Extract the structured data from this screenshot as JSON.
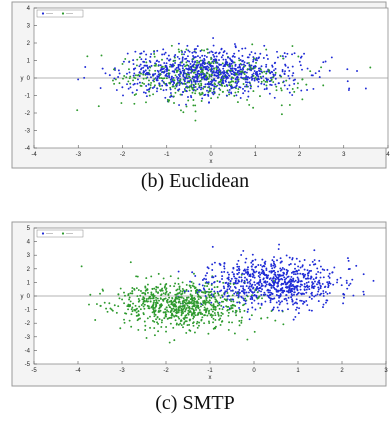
{
  "chart_data": [
    {
      "type": "scatter",
      "caption": "(b) Euclidean",
      "xlabel": "x",
      "ylabel": "y",
      "xlim": [
        -4,
        4
      ],
      "ylim": [
        -4,
        4
      ],
      "xticks": [
        -4,
        -3,
        -2,
        -1,
        0,
        1,
        2,
        3,
        4
      ],
      "yticks": [
        4,
        3,
        2,
        1,
        0,
        -1,
        -2,
        -3,
        -4
      ],
      "legend_entries": [
        "",
        ""
      ],
      "legend_position": "top-left",
      "seed": 7,
      "series": [
        {
          "color": "#1f2bd6",
          "count": 900,
          "mean": [
            0.0,
            0.3
          ],
          "sd": [
            1.0,
            0.65
          ]
        },
        {
          "color": "#2e9a2e",
          "count": 420,
          "mean": [
            -0.2,
            0.0
          ],
          "sd": [
            1.0,
            0.75
          ]
        }
      ],
      "outliers": [
        {
          "color": "#2e9a2e",
          "x": 3.6,
          "y": 0.6
        },
        {
          "color": "#1f2bd6",
          "x": 3.5,
          "y": -0.6
        },
        {
          "color": "#1f2bd6",
          "x": 3.3,
          "y": 0.4
        }
      ]
    },
    {
      "type": "scatter",
      "caption": "(c) SMTP",
      "xlabel": "x",
      "ylabel": "y",
      "xlim": [
        -5,
        3
      ],
      "ylim": [
        -5,
        5
      ],
      "xticks": [
        -5,
        -4,
        -3,
        -2,
        -1,
        0,
        1,
        2,
        3
      ],
      "yticks": [
        5,
        4,
        3,
        2,
        1,
        0,
        -1,
        -2,
        -3,
        -4,
        -5
      ],
      "legend_entries": [
        "",
        ""
      ],
      "legend_position": "top-left",
      "seed": 11,
      "series": [
        {
          "color": "#1f2bd6",
          "count": 800,
          "mean": [
            0.4,
            1.0
          ],
          "sd": [
            0.75,
            0.9
          ]
        },
        {
          "color": "#2e9a2e",
          "count": 800,
          "mean": [
            -1.6,
            -0.7
          ],
          "sd": [
            0.75,
            0.85
          ]
        }
      ],
      "outliers": []
    }
  ]
}
